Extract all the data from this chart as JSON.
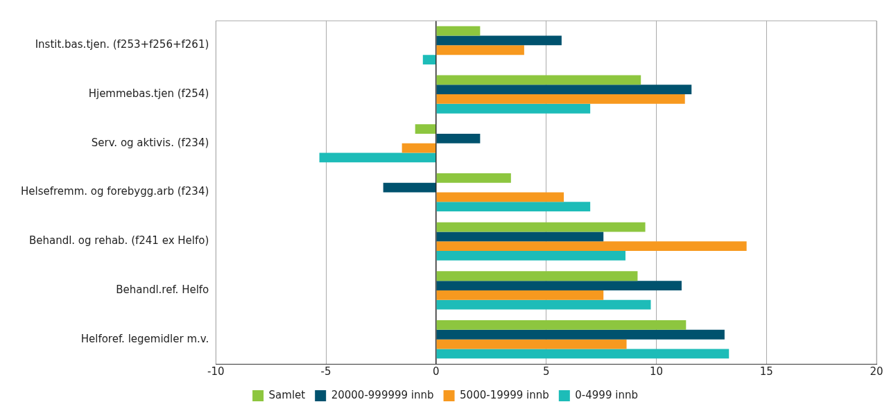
{
  "chart_data": {
    "type": "bar",
    "orientation": "horizontal",
    "categories": [
      "Instit.bas.tjen. (f253+f256+f261)",
      "Hjemmebas.tjen (f254)",
      "Serv. og aktivis. (f234)",
      "Helsefremm. og forebygg.arb (f234)",
      "Behandl. og rehab. (f241 ex Helfo)",
      "Behandl.ref. Helfo",
      "Helforef. legemidler m.v."
    ],
    "series": [
      {
        "name": "Samlet",
        "color": "#8dc63f",
        "values": [
          2.0,
          9.3,
          -0.95,
          3.4,
          9.5,
          9.15,
          11.35
        ]
      },
      {
        "name": "20000-999999 innb",
        "color": "#00526e",
        "values": [
          5.7,
          11.6,
          2.0,
          -2.4,
          7.6,
          11.15,
          13.1
        ]
      },
      {
        "name": "5000-19999 innb",
        "color": "#f7991f",
        "values": [
          4.0,
          11.3,
          -1.55,
          5.8,
          14.1,
          7.6,
          8.65
        ]
      },
      {
        "name": "0-4999 innb",
        "color": "#1dbcb8",
        "values": [
          -0.6,
          7.0,
          -5.3,
          7.0,
          8.6,
          9.75,
          13.3
        ]
      }
    ],
    "xlim": [
      -10,
      20
    ],
    "xticks": [
      -10,
      -5,
      0,
      5,
      10,
      15,
      20
    ],
    "grid": "x",
    "legend": "bottom"
  }
}
